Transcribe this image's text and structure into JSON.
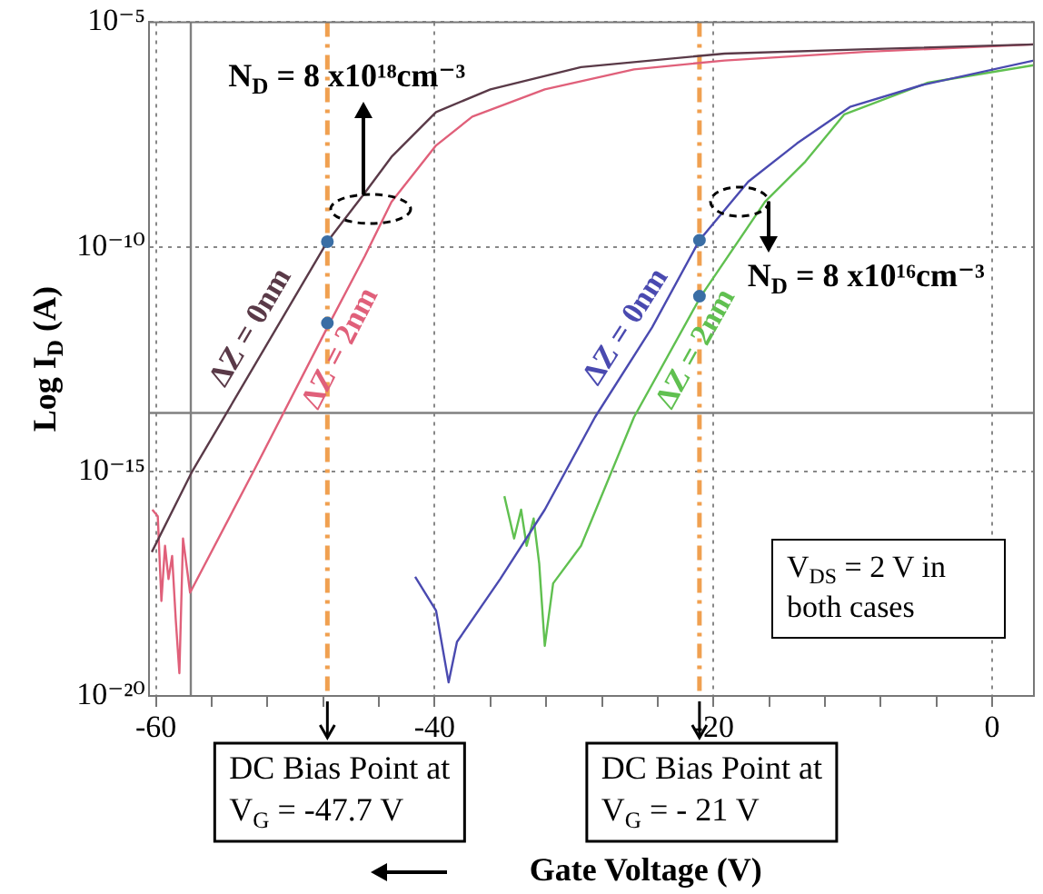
{
  "chart_data": {
    "type": "line",
    "xlabel": "Gate Voltage (V)",
    "ylabel": "Log I$_{D}$ (A)",
    "log": "y",
    "grid": true,
    "marker": "none",
    "line_style": "solid",
    "xlim": [
      -60.5,
      3
    ],
    "ylim": [
      1e-20,
      1e-05
    ],
    "xticks": [
      -60,
      {
        "value": -56,
        "label": null
      },
      {
        "value": -52,
        "label": null
      },
      {
        "value": -48,
        "label": null
      },
      {
        "value": -44,
        "label": null
      },
      -40,
      {
        "value": -36,
        "label": null
      },
      {
        "value": -32,
        "label": null
      },
      {
        "value": -28,
        "label": null
      },
      {
        "value": -24,
        "label": null
      },
      -20,
      {
        "value": -16,
        "label": null
      },
      {
        "value": -12,
        "label": null
      },
      {
        "value": -8,
        "label": null
      },
      {
        "value": -4,
        "label": null
      },
      0
    ],
    "yticks": [
      {
        "value": 1e-20,
        "label": "10⁻²⁰"
      },
      {
        "value": 1e-15,
        "label": "10⁻¹⁵"
      },
      {
        "value": 1e-10,
        "label": "10⁻¹⁰"
      },
      {
        "value": 1e-05,
        "label": "10⁻⁵"
      }
    ],
    "series": [
      {
        "name": "ΔZ = 0nm",
        "color": "#5a3a48",
        "x": [
          -60.3,
          -57.4,
          -47.7,
          -45,
          -43.1,
          -39.9,
          -36,
          -29.5,
          -19.2,
          -8.9,
          3
        ],
        "values": [
          1.6e-17,
          1e-15,
          1.3e-10,
          1.6e-09,
          1e-08,
          1e-07,
          3.2e-07,
          1e-06,
          2e-06,
          2.5e-06,
          3.2e-06
        ]
      },
      {
        "name": "ΔZ = 2nm",
        "color": "#e0607a",
        "x": [
          -60.26,
          -59.87,
          -59.61,
          -59.35,
          -59.1,
          -58.84,
          -58.58,
          -58.32,
          -58.06,
          -57.55,
          -53,
          -47.7,
          -45,
          -43.1,
          -39.9,
          -37.3,
          -32.1,
          -25.7,
          -19.2,
          -8.9,
          3
        ],
        "values": [
          1.4e-16,
          1e-16,
          1.3e-18,
          2.2e-17,
          4e-18,
          1.3e-17,
          5e-19,
          3.2e-20,
          3.2e-17,
          2e-18,
          1e-15,
          1.6e-12,
          6.3e-11,
          1e-09,
          1.8e-08,
          7.9e-08,
          3.2e-07,
          8.9e-07,
          1.4e-06,
          2.2e-06,
          3.2e-06
        ]
      },
      {
        "name": "ΔZ = 0nm",
        "color": "#4a4ab0",
        "x": [
          -41.4,
          -39.9,
          -39,
          -38.4,
          -35.3,
          -32.1,
          -28.5,
          -24.4,
          -21,
          -17.5,
          -14,
          -10.2,
          -5,
          3
        ],
        "values": [
          4.5e-18,
          7.9e-19,
          2e-20,
          1.6e-19,
          4e-18,
          1.4e-16,
          1.6e-14,
          1.6e-12,
          1.4e-10,
          2.8e-09,
          2e-08,
          1.3e-07,
          4e-07,
          1.4e-06
        ]
      },
      {
        "name": "ΔZ = 2nm",
        "color": "#60c050",
        "x": [
          -35,
          -34.3,
          -33.8,
          -33.4,
          -32.9,
          -32.5,
          -32.1,
          -31.5,
          -29.5,
          -25.7,
          -20.9,
          -16.3,
          -13.4,
          -10.6,
          -4.6,
          3
        ],
        "values": [
          2.8e-16,
          3.2e-17,
          1.4e-16,
          2.2e-17,
          8.9e-17,
          8.9e-18,
          1.3e-19,
          3.2e-18,
          2.2e-17,
          1.6e-14,
          7.9e-12,
          1e-09,
          7.9e-09,
          8.9e-08,
          4.5e-07,
          1.1e-06
        ]
      },
      {
        "type": "scatter",
        "marker": "circle",
        "color": "#3a6ea5",
        "x": [
          -47.7,
          -47.7,
          -21,
          -21
        ],
        "values": [
          1.3e-10,
          2e-12,
          1.4e-10,
          7.9e-12
        ]
      }
    ],
    "ref_lines": [
      {
        "axis": "x",
        "value": -47.7,
        "label": "DC Bias Point at\nV$_{G}$ = -47.7 V",
        "color": "#f0a050",
        "line_style": "dashed"
      },
      {
        "axis": "x",
        "value": -21,
        "label": "DC Bias Point at\nV$_{G}$ = - 21 V",
        "color": "#f0a050",
        "line_style": "dashed"
      },
      {
        "axis": "x",
        "value": -57.5,
        "color": "#808080",
        "line_style": "solid"
      },
      {
        "axis": "y",
        "value": 2e-14,
        "color": "#808080",
        "line_style": "solid"
      }
    ],
    "annotations": [
      {
        "text": "N$_{D}$ = 8 x10¹⁸cm⁻³",
        "x": -45,
        "y": 1.5e-09
      },
      {
        "text": "N$_{D}$ = 8 x10¹⁶cm⁻³",
        "x": -18.3,
        "y": 1e-09
      },
      "V$_{DS}$ = 2 V in both cases"
    ]
  }
}
